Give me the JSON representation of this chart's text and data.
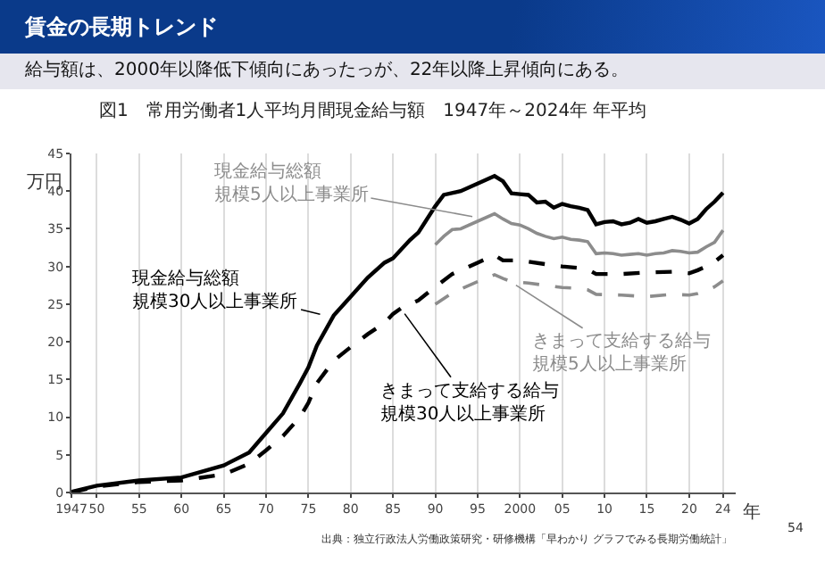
{
  "chart_data": {
    "type": "line",
    "title": "図1　常用労働者1人平均月間現金給与額　1947年～2024年 年平均",
    "subtitle": "給与額は、2000年以降低下傾向にあったっが、22年以降上昇傾向にある。",
    "ylabel": "万円",
    "xlabel": "年",
    "annotations": [
      "賃金の長期トレンド",
      "出典：独立行政法人労働政策研究・研修機構「早わかり グラフでみる長期労働統計」",
      "54"
    ],
    "xlim": [
      1947,
      2025.5
    ],
    "xticks": [
      1947,
      {
        "value": 1950,
        "label": "50"
      },
      {
        "value": 1955,
        "label": "55"
      },
      {
        "value": 1960,
        "label": "60"
      },
      {
        "value": 1965,
        "label": "65"
      },
      {
        "value": 1970,
        "label": "70"
      },
      {
        "value": 1975,
        "label": "75"
      },
      {
        "value": 1980,
        "label": "80"
      },
      {
        "value": 1985,
        "label": "85"
      },
      {
        "value": 1990,
        "label": "90"
      },
      {
        "value": 1995,
        "label": "95"
      },
      2000,
      {
        "value": 2005,
        "label": "05"
      },
      {
        "value": 2010,
        "label": "10"
      },
      {
        "value": 2015,
        "label": "15"
      },
      {
        "value": 2020,
        "label": "20"
      },
      {
        "value": 2024,
        "label": "24"
      }
    ],
    "ylim": [
      0,
      45
    ],
    "yticks": [
      0,
      5,
      10,
      15,
      20,
      25,
      30,
      35,
      40,
      45
    ],
    "grid": "x",
    "legend": false,
    "marker": "none",
    "series": [
      {
        "name": "現金給与総額規模30人以上事業所",
        "color": "#000000",
        "line_style": "solid",
        "x": [
          1947,
          1950,
          1955,
          1960,
          1965,
          1968,
          1970,
          1972,
          1974,
          1975,
          1976,
          1978,
          1980,
          1982,
          1984,
          1985,
          1987,
          1988,
          1990,
          1991,
          1993,
          1995,
          1997,
          1998,
          1999,
          2000,
          2001,
          2002,
          2003,
          2004,
          2005,
          2006,
          2007,
          2008,
          2009,
          2010,
          2011,
          2012,
          2013,
          2014,
          2015,
          2016,
          2017,
          2018,
          2019,
          2020,
          2021,
          2022,
          2023,
          2024
        ],
        "values": [
          0.1,
          0.9,
          1.6,
          2.0,
          3.6,
          5.3,
          7.9,
          10.5,
          14.5,
          16.6,
          19.5,
          23.5,
          26,
          28.5,
          30.5,
          31.1,
          33.5,
          34.5,
          38,
          39.5,
          40,
          41,
          42,
          41.3,
          39.7,
          39.6,
          39.5,
          38.5,
          38.6,
          37.8,
          38.3,
          38,
          37.8,
          37.5,
          35.6,
          35.9,
          36,
          35.6,
          35.8,
          36.3,
          35.8,
          36,
          36.3,
          36.6,
          36.2,
          35.7,
          36.3,
          37.6,
          38.6,
          39.8
        ]
      },
      {
        "name": "現金給与総額規模5人以上事業所",
        "color": "#8c8c8c",
        "line_style": "solid",
        "x": [
          1990,
          1991,
          1992,
          1993,
          1995,
          1997,
          1998,
          1999,
          2000,
          2001,
          2002,
          2003,
          2004,
          2005,
          2006,
          2007,
          2008,
          2009,
          2010,
          2011,
          2012,
          2013,
          2014,
          2015,
          2016,
          2017,
          2018,
          2019,
          2020,
          2021,
          2022,
          2023,
          2024
        ],
        "values": [
          32.9,
          34,
          34.9,
          35,
          36,
          37,
          36.3,
          35.7,
          35.5,
          35,
          34.4,
          34,
          33.7,
          33.9,
          33.6,
          33.5,
          33.3,
          31.7,
          31.8,
          31.7,
          31.5,
          31.6,
          31.7,
          31.5,
          31.7,
          31.8,
          32.1,
          32,
          31.8,
          31.9,
          32.6,
          33.2,
          34.8
        ]
      },
      {
        "name": "きまって支給する給与規模30人以上事業所",
        "color": "#000000",
        "line_style": "dashed",
        "x": [
          1947,
          1950,
          1955,
          1960,
          1965,
          1968,
          1970,
          1972,
          1974,
          1975,
          1976,
          1978,
          1980,
          1982,
          1984,
          1985,
          1986,
          1988,
          1990,
          1992,
          1995,
          1997,
          1998,
          2000,
          2003,
          2005,
          2007,
          2008,
          2009,
          2012,
          2015,
          2018,
          2020,
          2021,
          2022,
          2023,
          2024
        ],
        "values": [
          0,
          0.8,
          1.4,
          1.6,
          2.4,
          3.8,
          5.6,
          7.5,
          10,
          11.9,
          14.5,
          17.5,
          19.3,
          21,
          22.5,
          23.7,
          24.5,
          25.5,
          27.3,
          29,
          30.5,
          31.5,
          30.8,
          30.8,
          30.3,
          30,
          29.8,
          29.6,
          29,
          29,
          29.2,
          29.3,
          29.1,
          29.5,
          30,
          30.6,
          31.5
        ]
      },
      {
        "name": "きまって支給する給与規模5人以上事業所",
        "color": "#8c8c8c",
        "line_style": "dashed",
        "x": [
          1990,
          1992,
          1995,
          1997,
          1998,
          1999,
          2001,
          2003,
          2005,
          2007,
          2008,
          2009,
          2012,
          2015,
          2018,
          2020,
          2021,
          2022,
          2023,
          2024
        ],
        "values": [
          25,
          26.5,
          28,
          28.9,
          28.4,
          28,
          27.8,
          27.5,
          27.2,
          27.1,
          26.9,
          26.3,
          26.2,
          26,
          26.3,
          26.2,
          26.4,
          26.8,
          27.3,
          28.1
        ]
      }
    ]
  }
}
